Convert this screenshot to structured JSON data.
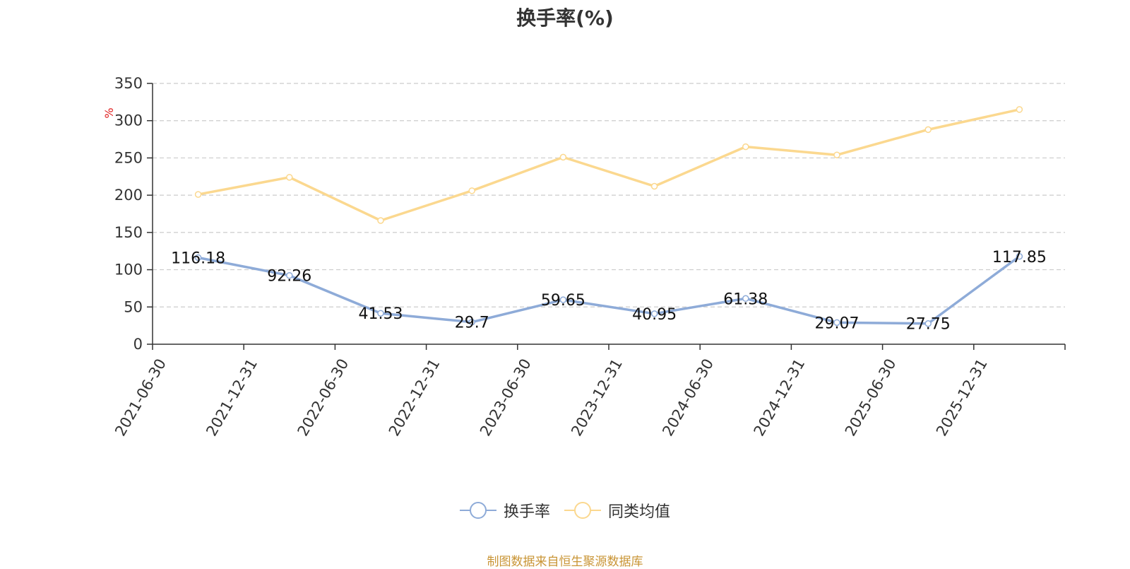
{
  "chart_data": {
    "type": "line",
    "title": "换手率(%)",
    "ylabel": "%",
    "ylim": [
      0,
      350
    ],
    "yticks": [
      0,
      50,
      100,
      150,
      200,
      250,
      300,
      350
    ],
    "grid": true,
    "legend_position": "bottom",
    "categories": [
      "2021-06-30",
      "2021-12-31",
      "2022-06-30",
      "2022-12-31",
      "2023-06-30",
      "2023-12-31",
      "2024-06-30",
      "2024-12-31",
      "2025-06-30",
      "2025-12-31"
    ],
    "series": [
      {
        "name": "换手率",
        "color": "#8eabd8",
        "values": [
          116.18,
          92.26,
          41.53,
          29.7,
          59.65,
          40.95,
          61.38,
          29.07,
          27.75,
          117.85
        ],
        "labels": [
          "116.18",
          "92.26",
          "41.53",
          "29.7",
          "59.65",
          "40.95",
          "61.38",
          "29.07",
          "27.75",
          "117.85"
        ]
      },
      {
        "name": "同类均值",
        "color": "#fbd88f",
        "values": [
          201,
          224,
          166,
          206,
          251,
          212,
          265,
          254,
          288,
          315
        ]
      }
    ]
  },
  "footer": {
    "source": "制图数据来自恒生聚源数据库"
  }
}
